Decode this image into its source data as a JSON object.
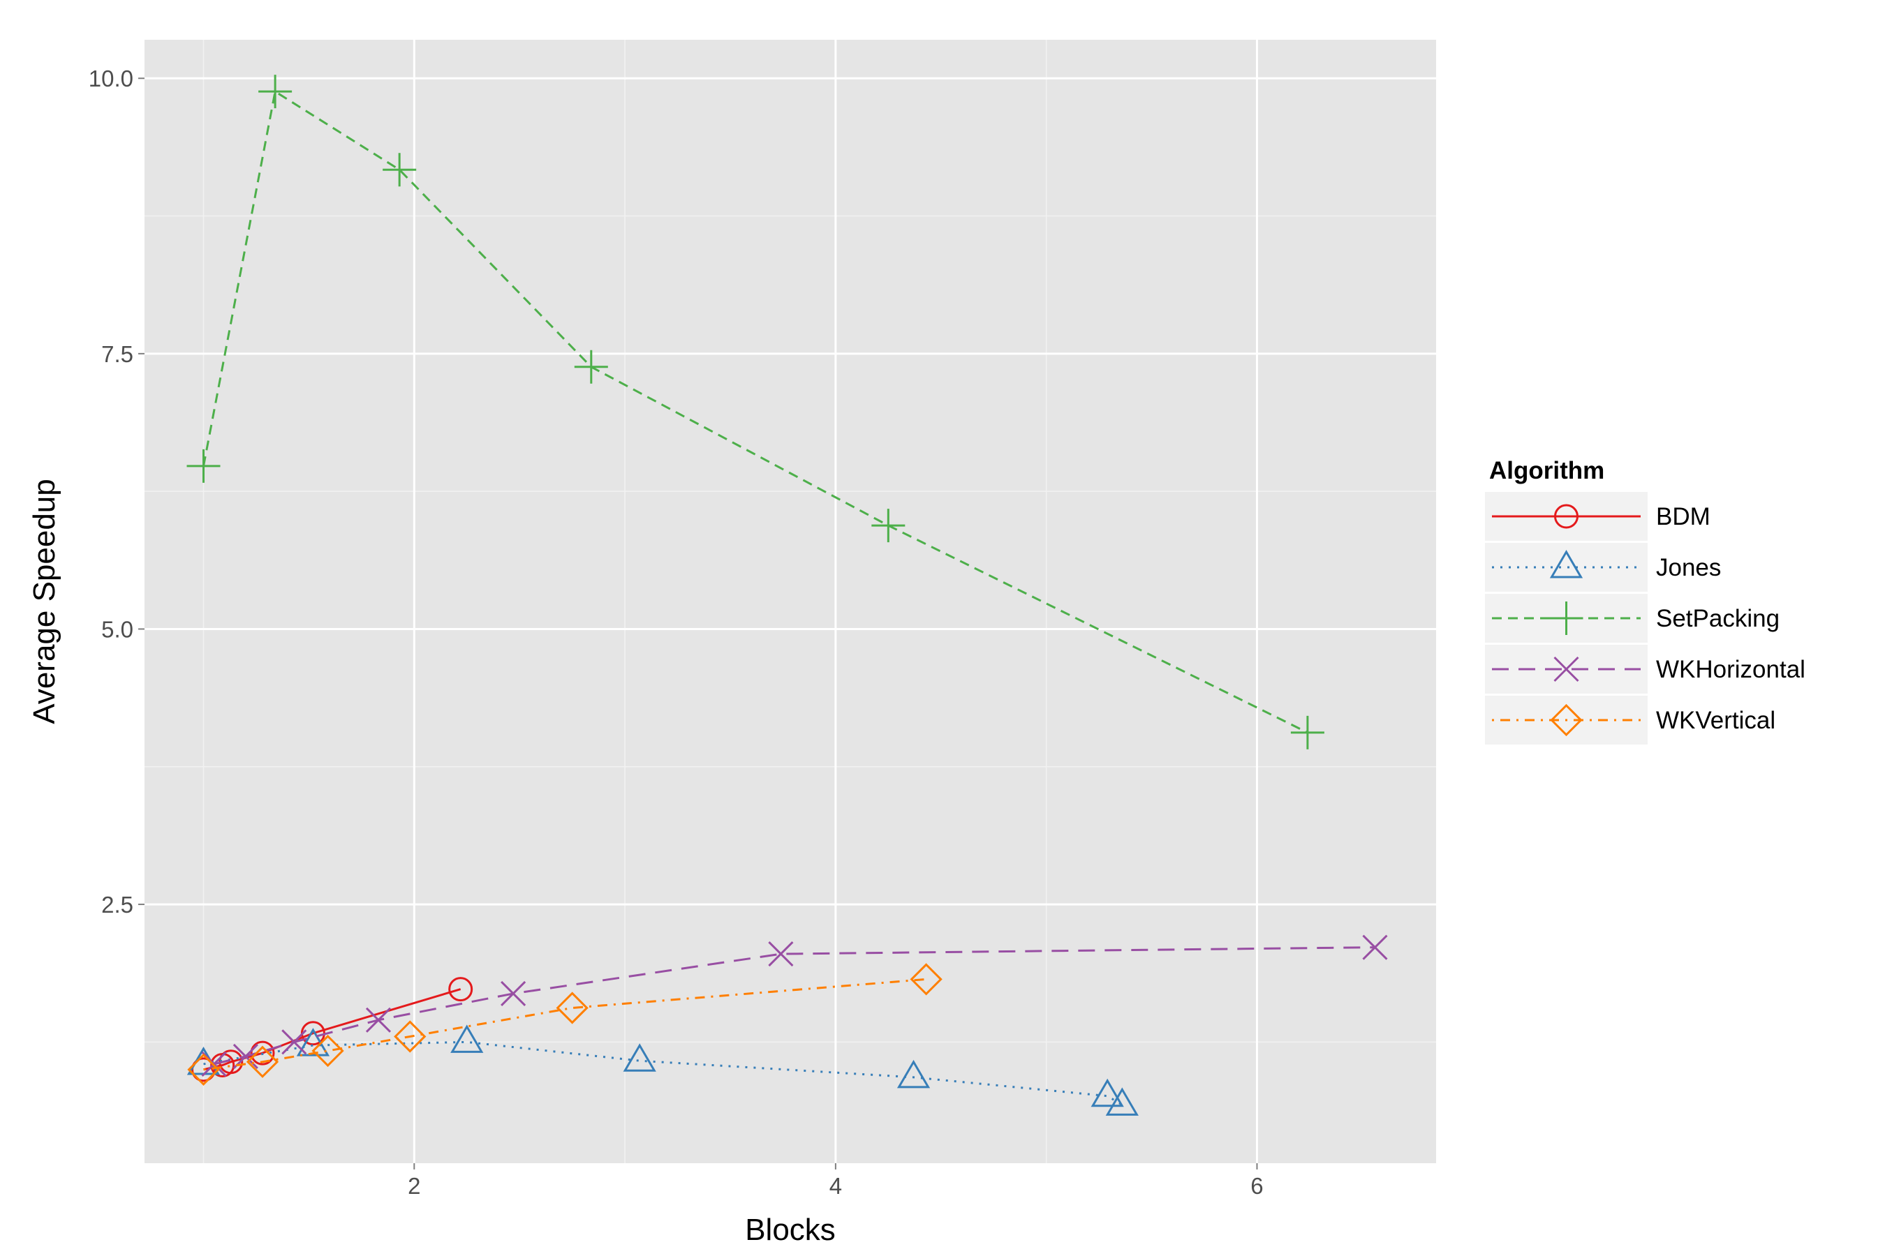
{
  "chart_data": {
    "type": "line",
    "title": "",
    "xlabel": "Blocks",
    "ylabel": "Average Speedup",
    "xlim": [
      0.72,
      6.85
    ],
    "ylim": [
      0.15,
      10.35
    ],
    "x_ticks": [
      2,
      4,
      6
    ],
    "y_ticks": [
      2.5,
      5.0,
      7.5,
      10.0
    ],
    "x_tick_labels": [
      "2",
      "4",
      "6"
    ],
    "y_tick_labels": [
      "2.5",
      "5.0",
      "7.5",
      "10.0"
    ],
    "grid": true,
    "legend": {
      "title": "Algorithm",
      "position": "right"
    },
    "series": [
      {
        "name": "BDM",
        "color": "#e41a1c",
        "linestyle": "solid",
        "marker": "circle",
        "x": [
          1.0,
          1.09,
          1.13,
          1.28,
          1.52,
          2.22
        ],
        "y": [
          1.0,
          1.04,
          1.07,
          1.15,
          1.33,
          1.73
        ]
      },
      {
        "name": "Jones",
        "color": "#377eb8",
        "linestyle": "dotted",
        "marker": "triangle",
        "x": [
          1.0,
          1.52,
          2.25,
          3.07,
          4.37,
          5.29,
          5.36
        ],
        "y": [
          1.05,
          1.22,
          1.25,
          1.08,
          0.93,
          0.76,
          0.68
        ]
      },
      {
        "name": "SetPacking",
        "color": "#4daf4a",
        "linestyle": "dashed",
        "marker": "plus",
        "x": [
          1.0,
          1.34,
          1.93,
          2.84,
          4.25,
          6.24
        ],
        "y": [
          6.48,
          9.88,
          9.17,
          7.38,
          5.94,
          4.06
        ]
      },
      {
        "name": "WKHorizontal",
        "color": "#984ea3",
        "linestyle": "longdash",
        "marker": "x",
        "x": [
          1.05,
          1.2,
          1.43,
          1.83,
          2.47,
          3.74,
          6.56
        ],
        "y": [
          1.05,
          1.12,
          1.25,
          1.45,
          1.69,
          2.05,
          2.11
        ]
      },
      {
        "name": "WKVertical",
        "color": "#ff7f00",
        "linestyle": "dotdash",
        "marker": "diamond",
        "x": [
          1.0,
          1.28,
          1.59,
          1.98,
          2.75,
          4.43
        ],
        "y": [
          1.0,
          1.07,
          1.17,
          1.3,
          1.56,
          1.82
        ]
      }
    ]
  }
}
